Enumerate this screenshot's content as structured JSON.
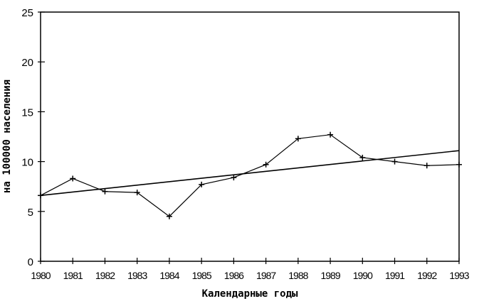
{
  "chart_data": {
    "type": "line",
    "xlabel": "Календарные годы",
    "ylabel": "на 100000 населения",
    "ylim": [
      0,
      25
    ],
    "xlim": [
      1980,
      1993
    ],
    "yticks": [
      "0",
      "5",
      "10",
      "15",
      "20",
      "25"
    ],
    "x": [
      1980,
      1981,
      1982,
      1983,
      1984,
      1985,
      1986,
      1987,
      1988,
      1989,
      1990,
      1991,
      1992,
      1993
    ],
    "xtick_labels": [
      "1980",
      "1981",
      "1982",
      "1983",
      "1984",
      "1985",
      "1986",
      "1987",
      "1988",
      "1989",
      "1990",
      "1991",
      "1992",
      "1993"
    ],
    "series": [
      {
        "values": [
          6.6,
          8.3,
          7.0,
          6.9,
          4.5,
          7.7,
          8.4,
          9.7,
          12.3,
          12.7,
          10.4,
          10.0,
          9.6,
          9.7
        ],
        "marker": "plus"
      },
      {
        "values": [
          6.6,
          11.1
        ],
        "x": [
          1980,
          1993
        ],
        "trend": true
      }
    ],
    "grid": false,
    "colors": {
      "line": "#000000",
      "background": "#ffffff"
    }
  }
}
